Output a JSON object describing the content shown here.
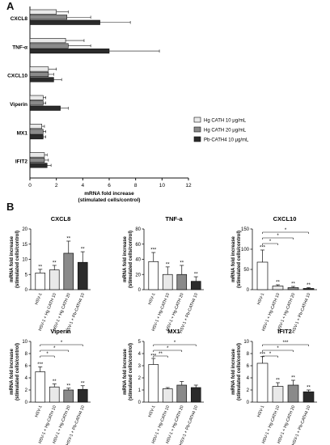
{
  "panels": {
    "a": {
      "letter": "A"
    },
    "b": {
      "letter": "B"
    }
  },
  "colors": {
    "light": "#e9e9e9",
    "mid": "#8a8a8a",
    "dark": "#2b2b2b",
    "hsv_only": "#ffffff",
    "axis": "#111111"
  },
  "chart_data": [
    {
      "id": "panelA",
      "type": "bar",
      "orientation": "horizontal",
      "genes": [
        "CXCL8",
        "TNF-α",
        "CXCL10",
        "Viperin",
        "MX1",
        "IFIT2"
      ],
      "series": [
        {
          "name": "Hg CATH 10 μg/mL",
          "values": [
            2.0,
            2.7,
            1.4,
            1.0,
            0.9,
            1.1
          ],
          "errors": [
            0.9,
            1.4,
            0.6,
            0.2,
            0.2,
            0.2
          ]
        },
        {
          "name": "Hg CATH 20 μg/mL",
          "values": [
            2.8,
            2.9,
            1.4,
            1.0,
            1.0,
            1.1
          ],
          "errors": [
            1.8,
            1.7,
            0.4,
            0.2,
            0.2,
            0.3
          ]
        },
        {
          "name": "Pb-CATH4 10 μg/mL",
          "values": [
            5.3,
            6.0,
            1.8,
            2.3,
            1.0,
            1.3
          ],
          "errors": [
            2.3,
            3.8,
            0.6,
            0.6,
            0.2,
            0.3
          ]
        }
      ],
      "xlabel": "mRNA fold increase",
      "xlabel2": "(stimulated cells/control)",
      "xlim": [
        0,
        12
      ],
      "xticks": [
        "0",
        "2",
        "4",
        "6",
        "8",
        "10",
        "12"
      ]
    },
    {
      "id": "cxcl8",
      "type": "bar",
      "title": "CXCL8",
      "ylabel": "mRNA fold increase",
      "ylabel2": "(stimulated cells/control)",
      "categories": [
        "HSV-1",
        "HSV-1 + Hg CATH 10",
        "HSV-1 + Hg CATH 20",
        "HSV-1 + Pb-CATH4 10"
      ],
      "values": [
        5.5,
        6.5,
        12,
        9
      ],
      "errors": [
        1.2,
        1.5,
        4,
        3.5
      ],
      "stars": [
        "**",
        "**",
        "**",
        "**"
      ],
      "ylim": [
        0,
        20
      ],
      "yticks": [
        "0",
        "5",
        "10",
        "15",
        "20"
      ],
      "comparisons": []
    },
    {
      "id": "tnf",
      "type": "bar",
      "title": "TNF-a",
      "ylabel": "mRNA fold increase",
      "ylabel2": "(stimulated cells/control)",
      "categories": [
        "HSV-1",
        "HSV-1 + Hg-CATH 10",
        "HSV-1 + Hg-CATH 20",
        "HSV-1 + Pb-CATH4 10"
      ],
      "values": [
        37,
        20,
        20,
        11
      ],
      "errors": [
        12,
        10,
        12,
        6
      ],
      "stars": [
        "***",
        "**",
        "**",
        "**"
      ],
      "ylim": [
        0,
        80
      ],
      "yticks": [
        "0",
        "20",
        "40",
        "60",
        "80"
      ],
      "comparisons": []
    },
    {
      "id": "cxcl10",
      "type": "bar",
      "title": "CXCL10",
      "ylabel": "mRNA fold increase",
      "ylabel2": "(stimulated cells/control)",
      "categories": [
        "HSV-1",
        "HSV-1 + Hg-CATH 10",
        "HSV-1 + Hg-CATH 20",
        "HSV-1 + Pb-CATH4 10"
      ],
      "values": [
        68,
        9,
        5,
        3
      ],
      "errors": [
        30,
        3,
        3,
        2
      ],
      "stars": [
        "***",
        "**",
        "**",
        "**"
      ],
      "ylim": [
        0,
        150
      ],
      "yticks": [
        "0",
        "50",
        "100",
        "150"
      ],
      "comparisons": [
        {
          "from": 0,
          "to": 3,
          "label": "*"
        },
        {
          "from": 0,
          "to": 2,
          "label": "*"
        },
        {
          "from": 0,
          "to": 1,
          "label": "*"
        }
      ]
    },
    {
      "id": "viperin",
      "type": "bar",
      "title": "Viperin",
      "ylabel": "mRNA fold increase",
      "ylabel2": "(stimulated cells/control)",
      "categories": [
        "HSV-1",
        "HSV-1 + Hg-CATH 10",
        "HSV-1 + Hg-CATH 20",
        "HSV-1 + Pb-CATH4 10"
      ],
      "values": [
        5.0,
        2.5,
        2.0,
        2.1
      ],
      "errors": [
        0.8,
        0.5,
        0.3,
        0.6
      ],
      "stars": [
        "***",
        "**",
        "**",
        "**"
      ],
      "ylim": [
        0,
        10
      ],
      "yticks": [
        "0",
        "2",
        "4",
        "6",
        "8",
        "10"
      ],
      "comparisons": [
        {
          "from": 0,
          "to": 3,
          "label": "*"
        },
        {
          "from": 0,
          "to": 2,
          "label": "*"
        },
        {
          "from": 0,
          "to": 1,
          "label": "*"
        }
      ]
    },
    {
      "id": "mx1",
      "type": "bar",
      "title": "MX1",
      "ylabel": "mRNA fold increase",
      "ylabel2": "(stimulated cells/control)",
      "categories": [
        "HSV-1",
        "HSV-1 + Hg-CATH 10",
        "HSV-1 + Hg-CATH 20",
        "HSV-1 + Pb-CATH4 10"
      ],
      "values": [
        3.1,
        1.1,
        1.4,
        1.2
      ],
      "errors": [
        0.5,
        0.1,
        0.3,
        0.2
      ],
      "stars": [
        "***",
        "",
        "",
        ""
      ],
      "ylim": [
        0,
        5
      ],
      "yticks": [
        "0",
        "1",
        "2",
        "3",
        "4",
        "5"
      ],
      "comparisons": [
        {
          "from": 0,
          "to": 3,
          "label": "*"
        },
        {
          "from": 0,
          "to": 2,
          "label": "*"
        },
        {
          "from": 0,
          "to": 1,
          "label": "**"
        }
      ]
    },
    {
      "id": "ifit2",
      "type": "bar",
      "title": "IFIT2",
      "ylabel": "mRNA fold increase",
      "ylabel2": "(stimulated cells/control)",
      "categories": [
        "HSV-1",
        "HSV-1 + Hg-CATH 10",
        "HSV-1 + Hg-CATH 20",
        "HSV-1 + Pb-CATH4 10"
      ],
      "values": [
        6.4,
        2.6,
        2.8,
        1.7
      ],
      "errors": [
        1.1,
        0.6,
        0.8,
        0.3
      ],
      "stars": [
        "***",
        "**",
        "**",
        "**"
      ],
      "ylim": [
        0,
        10
      ],
      "yticks": [
        "0",
        "2",
        "4",
        "6",
        "8",
        "10"
      ],
      "comparisons": [
        {
          "from": 0,
          "to": 3,
          "label": "***"
        },
        {
          "from": 0,
          "to": 2,
          "label": "*"
        },
        {
          "from": 0,
          "to": 1,
          "label": "*"
        }
      ]
    }
  ]
}
